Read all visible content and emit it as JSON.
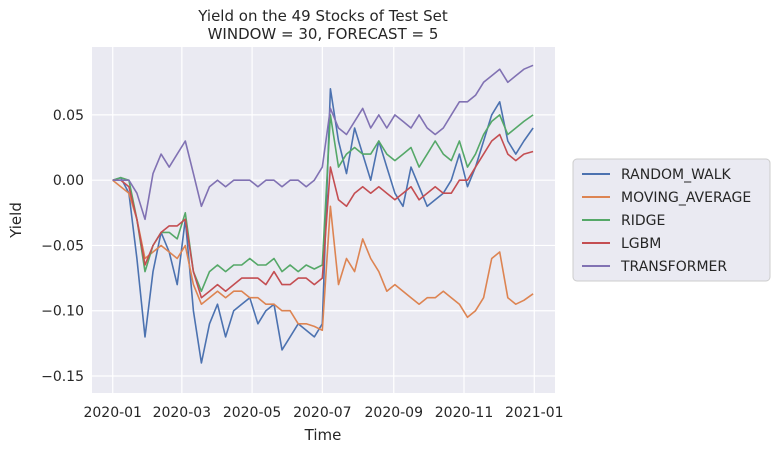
{
  "chart_data": {
    "type": "line",
    "title": "Yield on the 49 Stocks of Test Set",
    "subtitle": "WINDOW = 30, FORECAST = 5",
    "xlabel": "Time",
    "ylabel": "Yield",
    "x_tick_labels": [
      "2020-01",
      "2020-03",
      "2020-05",
      "2020-07",
      "2020-09",
      "2020-11",
      "2021-01"
    ],
    "y_tick_labels": [
      "0.05",
      "0.00",
      "−0.05",
      "−0.10",
      "−0.15"
    ],
    "x_ticks": [
      "2020-01-01",
      "2020-03-01",
      "2020-05-01",
      "2020-07-01",
      "2020-09-01",
      "2020-11-01",
      "2021-01-01"
    ],
    "y_ticks": [
      0.05,
      0.0,
      -0.05,
      -0.1,
      -0.15
    ],
    "xlim": [
      "2019-12-14",
      "2021-01-19"
    ],
    "ylim": [
      -0.163,
      0.102
    ],
    "grid": true,
    "legend_position": "right, outside plot",
    "x": [
      "2020-01-01",
      "2020-01-08",
      "2020-01-15",
      "2020-01-22",
      "2020-01-29",
      "2020-02-05",
      "2020-02-12",
      "2020-02-19",
      "2020-02-26",
      "2020-03-04",
      "2020-03-11",
      "2020-03-18",
      "2020-03-25",
      "2020-04-01",
      "2020-04-08",
      "2020-04-15",
      "2020-04-22",
      "2020-04-29",
      "2020-05-06",
      "2020-05-13",
      "2020-05-20",
      "2020-05-27",
      "2020-06-03",
      "2020-06-10",
      "2020-06-17",
      "2020-06-24",
      "2020-07-01",
      "2020-07-08",
      "2020-07-15",
      "2020-07-22",
      "2020-07-29",
      "2020-08-05",
      "2020-08-12",
      "2020-08-19",
      "2020-08-26",
      "2020-09-02",
      "2020-09-09",
      "2020-09-16",
      "2020-09-23",
      "2020-09-30",
      "2020-10-07",
      "2020-10-14",
      "2020-10-21",
      "2020-10-28",
      "2020-11-04",
      "2020-11-11",
      "2020-11-18",
      "2020-11-25",
      "2020-12-02",
      "2020-12-09",
      "2020-12-16",
      "2020-12-23",
      "2020-12-31"
    ],
    "series": [
      {
        "name": "RANDOM_WALK",
        "color": "#4c72b0",
        "values": [
          0.0,
          0.002,
          -0.01,
          -0.06,
          -0.12,
          -0.07,
          -0.04,
          -0.055,
          -0.08,
          -0.03,
          -0.1,
          -0.14,
          -0.11,
          -0.095,
          -0.12,
          -0.1,
          -0.095,
          -0.09,
          -0.11,
          -0.1,
          -0.095,
          -0.13,
          -0.12,
          -0.11,
          -0.115,
          -0.12,
          -0.11,
          0.07,
          0.03,
          0.005,
          0.04,
          0.02,
          0.0,
          0.03,
          0.01,
          -0.01,
          -0.02,
          0.01,
          -0.005,
          -0.02,
          -0.015,
          -0.01,
          0.0,
          0.02,
          -0.005,
          0.01,
          0.03,
          0.05,
          0.06,
          0.03,
          0.02,
          0.03,
          0.04
        ]
      },
      {
        "name": "MOVING_AVERAGE",
        "color": "#dd8452",
        "values": [
          0.0,
          -0.005,
          -0.01,
          -0.03,
          -0.06,
          -0.055,
          -0.05,
          -0.055,
          -0.06,
          -0.05,
          -0.08,
          -0.095,
          -0.09,
          -0.085,
          -0.09,
          -0.085,
          -0.085,
          -0.09,
          -0.09,
          -0.095,
          -0.095,
          -0.1,
          -0.1,
          -0.11,
          -0.11,
          -0.112,
          -0.115,
          -0.02,
          -0.08,
          -0.06,
          -0.07,
          -0.045,
          -0.06,
          -0.07,
          -0.085,
          -0.08,
          -0.085,
          -0.09,
          -0.095,
          -0.09,
          -0.09,
          -0.085,
          -0.09,
          -0.095,
          -0.105,
          -0.1,
          -0.09,
          -0.06,
          -0.055,
          -0.09,
          -0.095,
          -0.092,
          -0.087
        ]
      },
      {
        "name": "RIDGE",
        "color": "#55a868",
        "values": [
          0.0,
          0.002,
          0.0,
          -0.03,
          -0.07,
          -0.05,
          -0.04,
          -0.04,
          -0.045,
          -0.025,
          -0.07,
          -0.085,
          -0.07,
          -0.065,
          -0.07,
          -0.065,
          -0.065,
          -0.06,
          -0.065,
          -0.065,
          -0.06,
          -0.07,
          -0.065,
          -0.07,
          -0.065,
          -0.068,
          -0.065,
          0.05,
          0.01,
          0.02,
          0.025,
          0.02,
          0.02,
          0.03,
          0.02,
          0.015,
          0.02,
          0.025,
          0.01,
          0.02,
          0.03,
          0.02,
          0.015,
          0.03,
          0.01,
          0.02,
          0.035,
          0.045,
          0.05,
          0.035,
          0.04,
          0.045,
          0.05
        ]
      },
      {
        "name": "LGBM",
        "color": "#c44e52",
        "values": [
          0.0,
          0.0,
          -0.005,
          -0.03,
          -0.065,
          -0.05,
          -0.04,
          -0.035,
          -0.035,
          -0.03,
          -0.07,
          -0.09,
          -0.085,
          -0.08,
          -0.085,
          -0.08,
          -0.075,
          -0.075,
          -0.075,
          -0.08,
          -0.07,
          -0.08,
          -0.08,
          -0.075,
          -0.075,
          -0.08,
          -0.075,
          0.01,
          -0.015,
          -0.02,
          -0.01,
          -0.005,
          -0.01,
          -0.005,
          -0.01,
          -0.015,
          -0.01,
          -0.005,
          -0.015,
          -0.01,
          -0.005,
          -0.01,
          -0.01,
          0.0,
          0.0,
          0.01,
          0.02,
          0.03,
          0.035,
          0.02,
          0.015,
          0.02,
          0.022
        ]
      },
      {
        "name": "TRANSFORMER",
        "color": "#8172b3",
        "values": [
          0.0,
          0.0,
          0.0,
          -0.01,
          -0.03,
          0.005,
          0.02,
          0.01,
          0.02,
          0.03,
          0.005,
          -0.02,
          -0.005,
          0.0,
          -0.005,
          0.0,
          0.0,
          0.0,
          -0.005,
          0.0,
          0.0,
          -0.005,
          0.0,
          0.0,
          -0.005,
          0.0,
          0.01,
          0.055,
          0.04,
          0.035,
          0.045,
          0.055,
          0.04,
          0.05,
          0.04,
          0.05,
          0.045,
          0.04,
          0.05,
          0.04,
          0.035,
          0.04,
          0.05,
          0.06,
          0.06,
          0.065,
          0.075,
          0.08,
          0.085,
          0.075,
          0.08,
          0.085,
          0.088
        ]
      }
    ]
  }
}
